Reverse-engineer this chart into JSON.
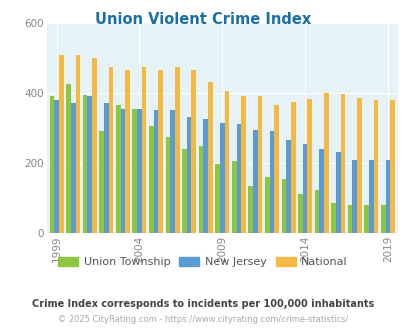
{
  "title": "Union Violent Crime Index",
  "title_color": "#1a6fa8",
  "subtitle": "Crime Index corresponds to incidents per 100,000 inhabitants",
  "subtitle_color": "#444444",
  "footer": "© 2025 CityRating.com - https://www.cityrating.com/crime-statistics/",
  "footer_color": "#aaaaaa",
  "years": [
    1999,
    2000,
    2001,
    2002,
    2003,
    2004,
    2005,
    2006,
    2007,
    2008,
    2009,
    2010,
    2011,
    2012,
    2013,
    2014,
    2015,
    2016,
    2017,
    2018,
    2019
  ],
  "union_township": [
    390,
    425,
    395,
    290,
    365,
    355,
    305,
    275,
    240,
    248,
    197,
    205,
    135,
    160,
    155,
    110,
    122,
    85,
    80,
    80,
    80
  ],
  "new_jersey": [
    380,
    370,
    390,
    370,
    355,
    355,
    350,
    350,
    330,
    325,
    315,
    310,
    295,
    290,
    265,
    255,
    240,
    230,
    208,
    208,
    208
  ],
  "national": [
    510,
    510,
    500,
    475,
    465,
    475,
    465,
    474,
    467,
    432,
    407,
    390,
    390,
    365,
    375,
    382,
    400,
    397,
    385,
    380,
    379
  ],
  "union_color": "#8dc63f",
  "nj_color": "#5b9bd5",
  "national_color": "#f5b942",
  "bg_color": "#e5f2f7",
  "ylim": [
    0,
    600
  ],
  "yticks": [
    0,
    200,
    400,
    600
  ],
  "bar_width": 0.28,
  "tick_years": [
    1999,
    2004,
    2009,
    2014,
    2019
  ],
  "legend_labels": [
    "Union Township",
    "New Jersey",
    "National"
  ]
}
